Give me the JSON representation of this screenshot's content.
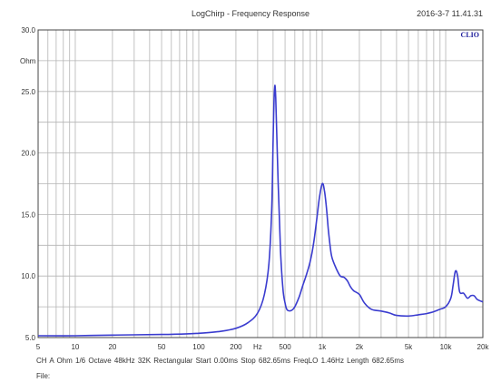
{
  "header": {
    "title": "LogChirp - Frequency Response",
    "datetime": "2016-3-7 11.41.31"
  },
  "footer": {
    "info": "CH A  Ohm  1/6 Octave  48kHz  32K  Rectangular  Start 0.00ms  Stop 682.65ms  FreqLO 1.46Hz  Length 682.65ms",
    "file_label": "File:"
  },
  "colors": {
    "curve": "#3a3ccf",
    "grid": "#b4b4b4",
    "axis": "#444444",
    "brand": "#1a1a9a"
  },
  "chart_data": {
    "type": "line",
    "brand": "CLIO",
    "unit_label": "Ohm",
    "x_scale": "log",
    "xlim": [
      5,
      20000
    ],
    "ylim": [
      5,
      30
    ],
    "y_ticks": [
      {
        "value": 30,
        "label": "30.0"
      },
      {
        "value": 25,
        "label": "25.0"
      },
      {
        "value": 20,
        "label": "20.0"
      },
      {
        "value": 15,
        "label": "15.0"
      },
      {
        "value": 10,
        "label": "10.0"
      },
      {
        "value": 5,
        "label": "5.0"
      }
    ],
    "x_ticks": [
      {
        "value": 5,
        "label": "5"
      },
      {
        "value": 10,
        "label": "10"
      },
      {
        "value": 20,
        "label": "20"
      },
      {
        "value": 50,
        "label": "50"
      },
      {
        "value": 100,
        "label": "100"
      },
      {
        "value": 200,
        "label": "200"
      },
      {
        "value": 300,
        "label": "Hz"
      },
      {
        "value": 500,
        "label": "500"
      },
      {
        "value": 1000,
        "label": "1k"
      },
      {
        "value": 2000,
        "label": "2k"
      },
      {
        "value": 5000,
        "label": "5k"
      },
      {
        "value": 10000,
        "label": "10k"
      },
      {
        "value": 20000,
        "label": "20k"
      }
    ],
    "grid": true,
    "series": [
      {
        "x": [
          5,
          10,
          20,
          50,
          80,
          100,
          150,
          200,
          250,
          300,
          340,
          370,
          390,
          400,
          410,
          420,
          440,
          460,
          480,
          500,
          520,
          560,
          600,
          650,
          700,
          750,
          800,
          850,
          900,
          950,
          1000,
          1040,
          1080,
          1120,
          1160,
          1200,
          1300,
          1400,
          1500,
          1600,
          1700,
          1800,
          2000,
          2200,
          2500,
          3000,
          3500,
          4000,
          5000,
          6000,
          7000,
          8000,
          9000,
          10000,
          11000,
          11500,
          12000,
          12500,
          13000,
          14000,
          15000,
          16000,
          17000,
          18000,
          20000
        ],
        "y": [
          5.15,
          5.15,
          5.2,
          5.25,
          5.3,
          5.35,
          5.5,
          5.75,
          6.2,
          7.0,
          8.5,
          11.0,
          15.5,
          21.0,
          25.0,
          24.5,
          17.5,
          12.0,
          9.0,
          7.8,
          7.25,
          7.2,
          7.5,
          8.3,
          9.3,
          10.2,
          11.2,
          12.6,
          14.5,
          16.4,
          17.5,
          17.0,
          15.6,
          13.8,
          12.4,
          11.5,
          10.6,
          10.0,
          9.9,
          9.6,
          9.1,
          8.8,
          8.5,
          7.8,
          7.3,
          7.15,
          7.0,
          6.8,
          6.75,
          6.85,
          6.95,
          7.1,
          7.3,
          7.5,
          8.2,
          9.3,
          10.4,
          10.0,
          8.7,
          8.6,
          8.2,
          8.4,
          8.4,
          8.1,
          7.9
        ]
      }
    ]
  }
}
